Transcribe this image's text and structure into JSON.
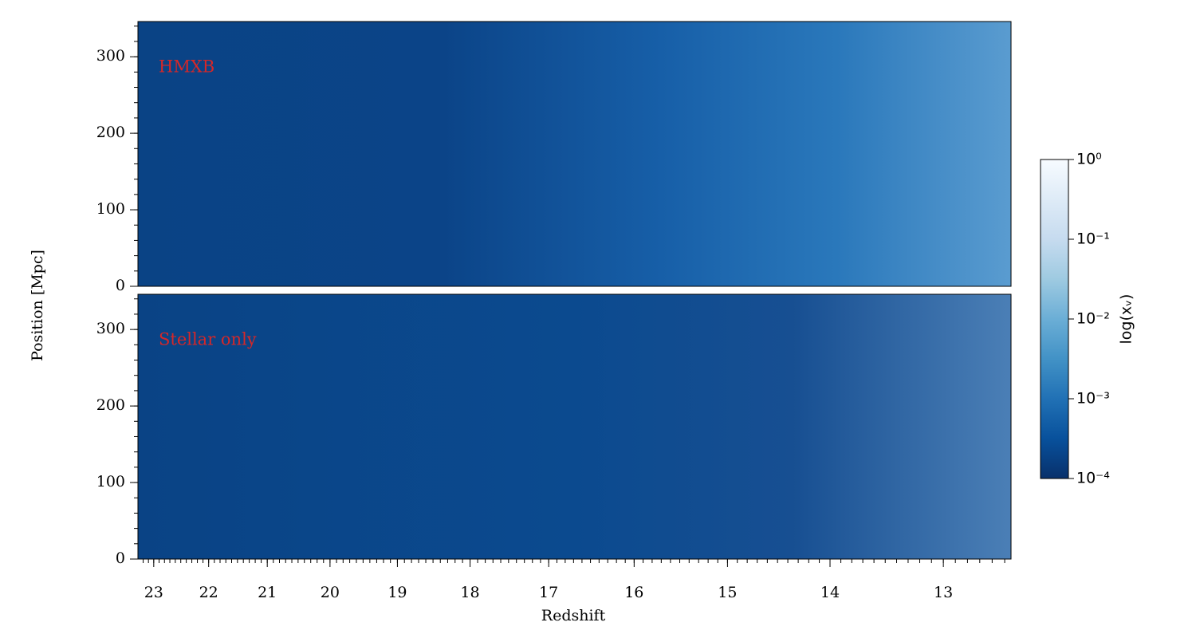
{
  "chart_data": {
    "type": "heatmap",
    "xlabel": "Redshift",
    "ylabel": "Position [Mpc]",
    "panels": [
      {
        "label": "HMXB"
      },
      {
        "label": "Stellar only"
      }
    ],
    "xscale": "1/sqrt(1+z)",
    "xlim": [
      23.3,
      12.45
    ],
    "xticks": [
      23,
      22,
      21,
      20,
      19,
      18,
      17,
      16,
      15,
      14,
      13
    ],
    "x_minor_step": 0.1,
    "ylim": [
      0,
      346
    ],
    "yticks": [
      0,
      100,
      200,
      300
    ],
    "y_minor_step": 20,
    "colorbar": {
      "label": "log(xᵥ)",
      "scale": "log",
      "lim": [
        0.0001,
        1
      ],
      "ticks": [
        {
          "value": 1,
          "label": "10⁰"
        },
        {
          "value": 0.1,
          "label": "10⁻¹"
        },
        {
          "value": 0.01,
          "label": "10⁻²"
        },
        {
          "value": 0.001,
          "label": "10⁻³"
        },
        {
          "value": 0.0001,
          "label": "10⁻⁴"
        }
      ],
      "colormap": [
        "#08306b",
        "#08519c",
        "#2171b5",
        "#4292c6",
        "#6baed6",
        "#9ecae1",
        "#c6dbef",
        "#deebf7",
        "#f7fbff"
      ]
    },
    "label_color": "#d62728"
  }
}
